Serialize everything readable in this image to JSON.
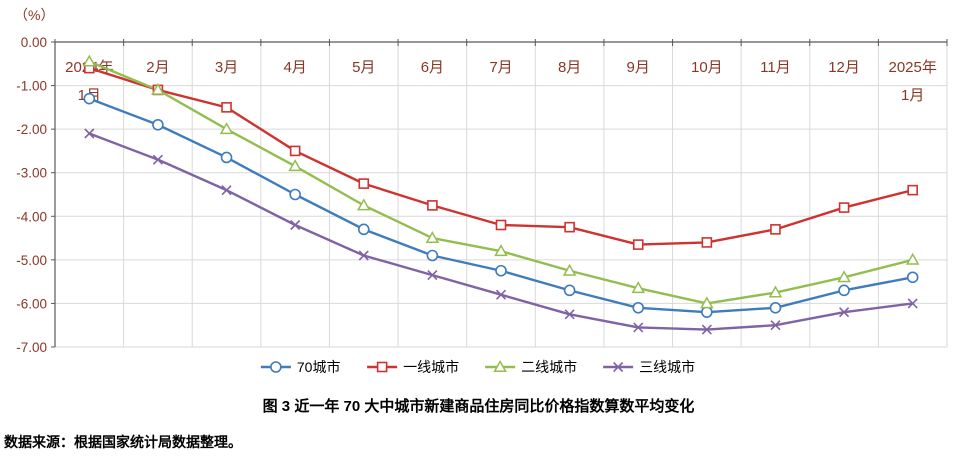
{
  "chart_data": {
    "type": "line",
    "unit_label": "（%）",
    "x": [
      "2024年\n1月",
      "2月",
      "3月",
      "4月",
      "5月",
      "6月",
      "7月",
      "8月",
      "9月",
      "10月",
      "11月",
      "12月",
      "2025年\n1月"
    ],
    "series": [
      {
        "name": "70城市",
        "marker": "circle",
        "color": "#3E7CBE",
        "values": [
          -1.3,
          -1.9,
          -2.65,
          -3.5,
          -4.3,
          -4.9,
          -5.25,
          -5.7,
          -6.1,
          -6.2,
          -6.1,
          -5.7,
          -5.4
        ]
      },
      {
        "name": "一线城市",
        "marker": "square",
        "color": "#CE3330",
        "values": [
          -0.6,
          -1.1,
          -1.5,
          -2.5,
          -3.25,
          -3.75,
          -4.2,
          -4.25,
          -4.65,
          -4.6,
          -4.3,
          -3.8,
          -3.4
        ]
      },
      {
        "name": "二线城市",
        "marker": "triangle",
        "color": "#94BD4F",
        "values": [
          -0.45,
          -1.1,
          -2.0,
          -2.85,
          -3.75,
          -4.5,
          -4.8,
          -5.25,
          -5.65,
          -6.0,
          -5.75,
          -5.4,
          -5.0
        ]
      },
      {
        "name": "三线城市",
        "marker": "x",
        "color": "#7F63A5",
        "values": [
          -2.1,
          -2.7,
          -3.4,
          -4.2,
          -4.9,
          -5.35,
          -5.8,
          -6.25,
          -6.55,
          -6.6,
          -6.5,
          -6.2,
          -6.0
        ]
      }
    ],
    "ylim": [
      -7,
      0
    ],
    "ytick_step": 1,
    "ytick_labels": [
      "0.00",
      "-1.00",
      "-2.00",
      "-3.00",
      "-4.00",
      "-5.00",
      "-6.00",
      "-7.00"
    ],
    "grid": true,
    "legend_position": "bottom"
  },
  "caption": "图 3  近一年 70 大中城市新建商品住房同比价格指数算数平均变化",
  "source": "数据来源：根据国家统计局数据整理。",
  "colors": {
    "axis_label": "#8B3626",
    "grid": "#D9D9D9",
    "axis_line": "#595959",
    "legend_text": "#000000"
  }
}
